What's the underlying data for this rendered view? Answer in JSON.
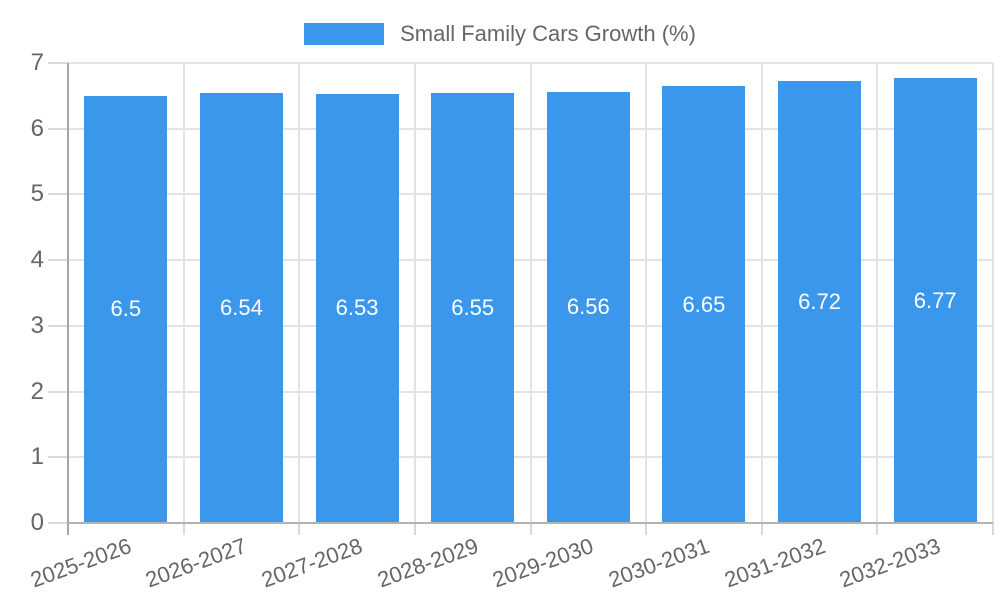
{
  "chart_data": {
    "type": "bar",
    "title": "",
    "legend_label": "Small Family Cars Growth (%)",
    "legend_position": "top",
    "categories": [
      "2025-2026",
      "2026-2027",
      "2027-2028",
      "2028-2029",
      "2029-2030",
      "2030-2031",
      "2031-2032",
      "2032-2033"
    ],
    "series": [
      {
        "name": "Small Family Cars Growth (%)",
        "values": [
          6.5,
          6.54,
          6.53,
          6.55,
          6.56,
          6.65,
          6.72,
          6.77
        ],
        "value_labels": [
          "6.5",
          "6.54",
          "6.53",
          "6.55",
          "6.56",
          "6.65",
          "6.72",
          "6.77"
        ]
      }
    ],
    "xlabel": "",
    "ylabel": "",
    "ylim": [
      0,
      7
    ],
    "ytick_step": 1,
    "yticks": [
      "0",
      "1",
      "2",
      "3",
      "4",
      "5",
      "6",
      "7"
    ],
    "grid": true,
    "colors": {
      "bar": "#3A97EC",
      "axis_text": "#666666",
      "gridline": "#E3E3E3",
      "tick": "#D9D9D9",
      "y_axis_line": "#A6A6A6",
      "x_axis_line": "#B3B3B3",
      "value_label": "#FFFFFF",
      "background": "#FFFFFF"
    }
  }
}
